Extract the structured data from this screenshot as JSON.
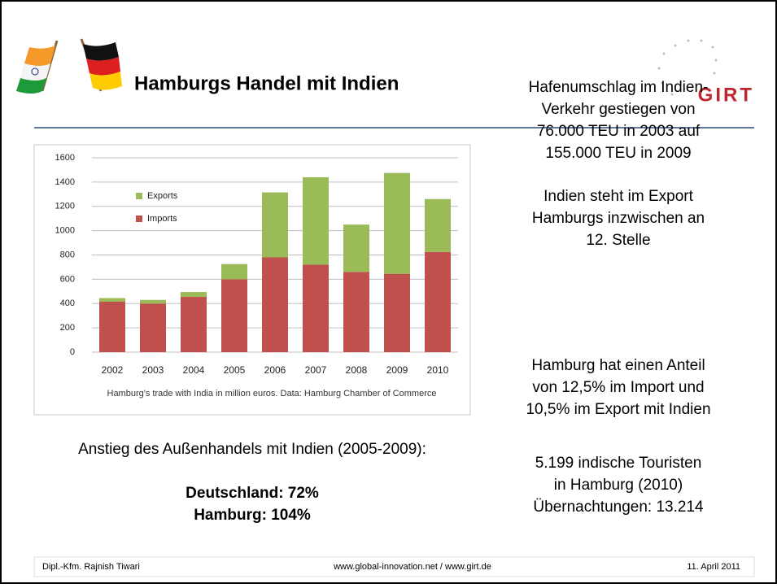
{
  "header": {
    "title": "Hamburgs Handel mit Indien",
    "logo": "GIRT"
  },
  "chart_data": {
    "type": "bar",
    "stacked": true,
    "categories": [
      "2002",
      "2003",
      "2004",
      "2005",
      "2006",
      "2007",
      "2008",
      "2009",
      "2010"
    ],
    "series": [
      {
        "name": "Imports",
        "color": "#c0504d",
        "values": [
          415,
          400,
          455,
          600,
          780,
          720,
          660,
          645,
          825
        ]
      },
      {
        "name": "Exports",
        "color": "#9bbb59",
        "values": [
          30,
          30,
          40,
          125,
          535,
          720,
          390,
          830,
          435
        ]
      }
    ],
    "ylim": [
      0,
      1600
    ],
    "yticks": [
      0,
      200,
      400,
      600,
      800,
      1000,
      1200,
      1400,
      1600
    ],
    "grid": true,
    "caption": "Hamburg's trade with India in million euros. Data: Hamburg Chamber of Commerce"
  },
  "facts": [
    [
      "Hafenumschlag im Indien-",
      "Verkehr gestiegen von",
      "76.000 TEU in 2003 auf",
      "155.000 TEU in 2009"
    ],
    [
      "Indien steht im Export",
      "Hamburgs inzwischen an",
      "12. Stelle"
    ],
    [
      "Hamburg hat einen Anteil",
      "von 12,5% im Import und",
      "10,5% im Export mit Indien"
    ],
    [
      "5.199 indische Touristen",
      "in Hamburg (2010)",
      "Übernachtungen: 13.214"
    ]
  ],
  "growth": {
    "heading": "Anstieg des Außenhandels mit Indien (2005-2009):",
    "lines": [
      "Deutschland: 72%",
      "Hamburg: 104%"
    ]
  },
  "footer": {
    "author": "Dipl.-Kfm. Rajnish Tiwari",
    "website": "www.global-innovation.net / www.girt.de",
    "date": "11. April 2011"
  }
}
